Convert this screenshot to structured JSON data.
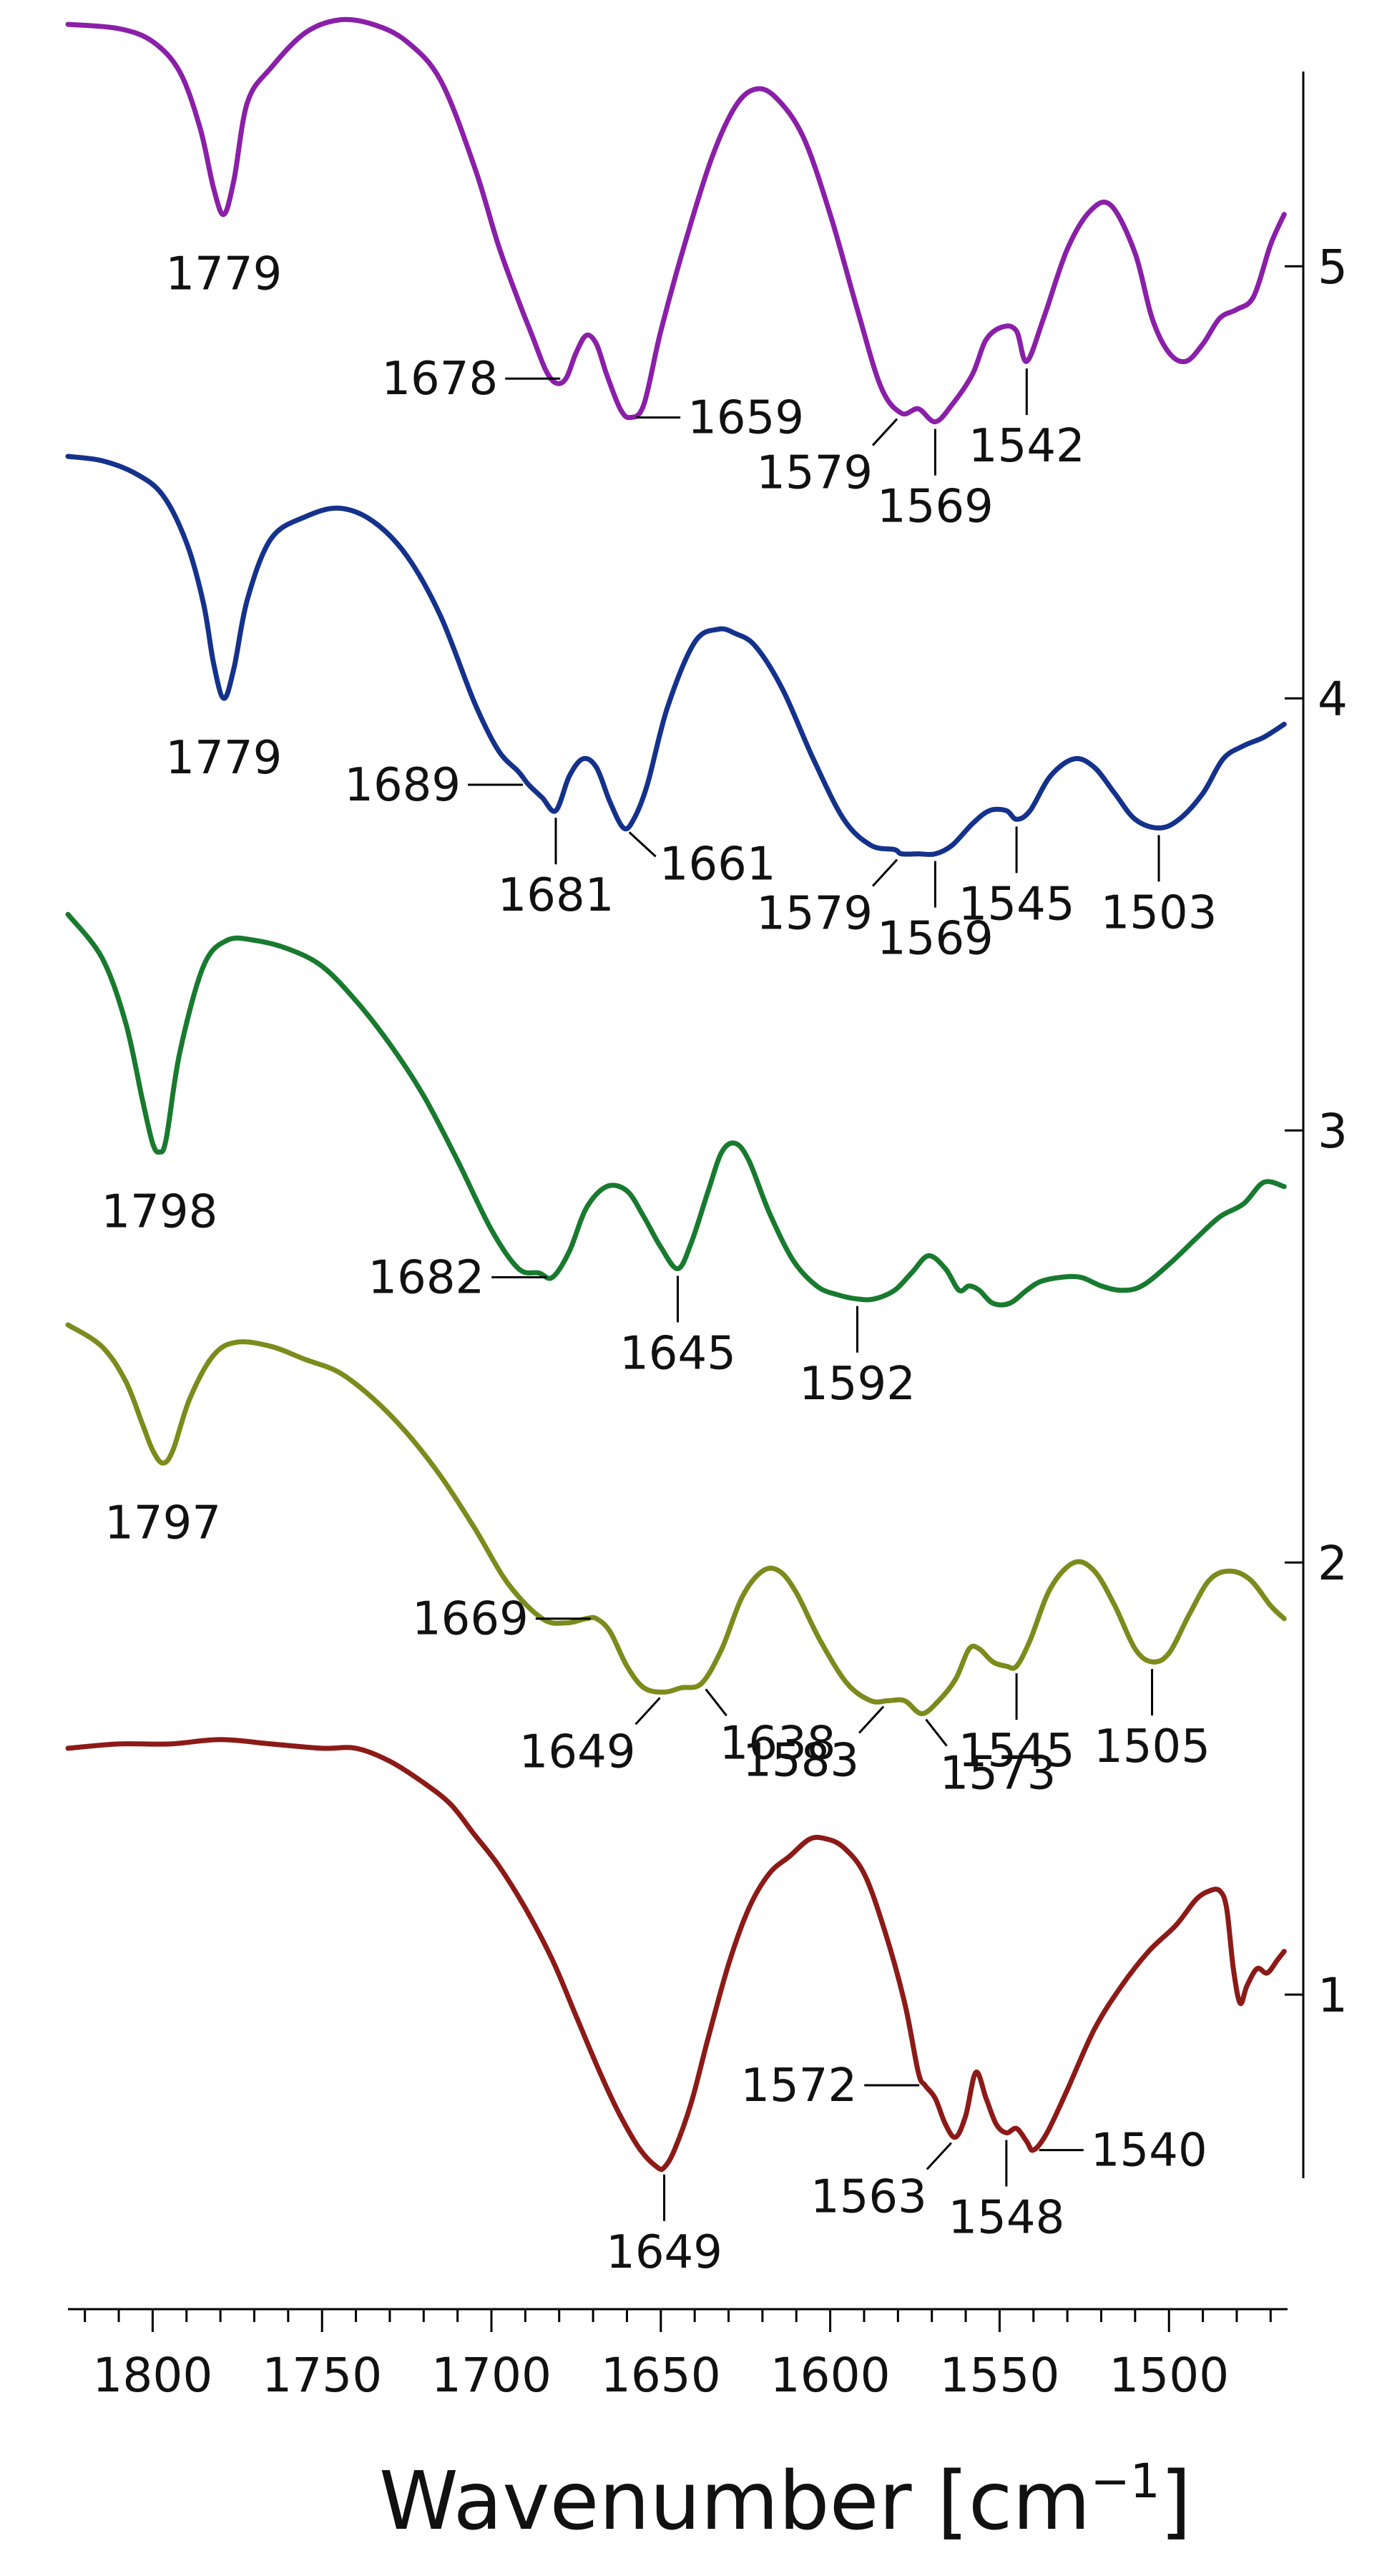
{
  "chart_data": {
    "type": "line",
    "title": "",
    "xlabel": "Wavenumber [cm",
    "xlabel_superscript": "−1",
    "xlabel_close": "]",
    "ylabel": "",
    "x_reversed": true,
    "xlim": [
      1825,
      1465
    ],
    "ylim": [
      0.55,
      5.55
    ],
    "x_ticks": [
      {
        "value": 1800,
        "label": "1800"
      },
      {
        "value": 1750,
        "label": "1750"
      },
      {
        "value": 1700,
        "label": "1700"
      },
      {
        "value": 1650,
        "label": "1650"
      },
      {
        "value": 1600,
        "label": "1600"
      },
      {
        "value": 1550,
        "label": "1550"
      },
      {
        "value": 1500,
        "label": "1500"
      }
    ],
    "y_ticks": [
      {
        "value": 1,
        "label": "1"
      },
      {
        "value": 2,
        "label": "2"
      },
      {
        "value": 3,
        "label": "3"
      },
      {
        "value": 4,
        "label": "4"
      },
      {
        "value": 5,
        "label": "5"
      }
    ],
    "grid": false,
    "legend": "none",
    "series": [
      {
        "id": "5",
        "color": "#8a1fa8",
        "x": [
          1825,
          1810,
          1800,
          1792,
          1786,
          1782,
          1779,
          1776,
          1772,
          1765,
          1755,
          1745,
          1735,
          1725,
          1715,
          1705,
          1698,
          1692,
          1688,
          1684,
          1681,
          1678,
          1675,
          1672,
          1669,
          1666,
          1662,
          1659,
          1655,
          1650,
          1643,
          1635,
          1628,
          1622,
          1616,
          1608,
          1600,
          1592,
          1585,
          1579,
          1574,
          1569,
          1564,
          1558,
          1554,
          1549,
          1545,
          1542,
          1537,
          1530,
          1523,
          1517,
          1510,
          1505,
          1500,
          1495,
          1490,
          1485,
          1480,
          1475,
          1470,
          1466
        ],
        "y": [
          5.56,
          5.55,
          5.52,
          5.45,
          5.32,
          5.18,
          5.12,
          5.2,
          5.38,
          5.46,
          5.54,
          5.57,
          5.56,
          5.52,
          5.43,
          5.23,
          5.05,
          4.92,
          4.84,
          4.76,
          4.73,
          4.74,
          4.8,
          4.84,
          4.82,
          4.75,
          4.67,
          4.65,
          4.68,
          4.85,
          5.05,
          5.25,
          5.37,
          5.41,
          5.39,
          5.3,
          5.12,
          4.9,
          4.72,
          4.66,
          4.67,
          4.64,
          4.68,
          4.75,
          4.83,
          4.86,
          4.85,
          4.78,
          4.88,
          5.04,
          5.13,
          5.14,
          5.03,
          4.88,
          4.8,
          4.78,
          4.82,
          4.88,
          4.9,
          4.93,
          5.05,
          5.12
        ]
      },
      {
        "id": "4",
        "color": "#14318c",
        "x": [
          1825,
          1815,
          1805,
          1797,
          1790,
          1785,
          1782,
          1779,
          1776,
          1772,
          1765,
          1755,
          1745,
          1735,
          1725,
          1715,
          1705,
          1698,
          1692,
          1689,
          1685,
          1681,
          1677,
          1673,
          1669,
          1665,
          1661,
          1658,
          1654,
          1648,
          1640,
          1633,
          1628,
          1622,
          1614,
          1605,
          1596,
          1588,
          1581,
          1579,
          1574,
          1569,
          1564,
          1558,
          1553,
          1548,
          1545,
          1541,
          1535,
          1528,
          1522,
          1516,
          1510,
          1503,
          1497,
          1490,
          1484,
          1478,
          1472,
          1466
        ],
        "y": [
          4.56,
          4.55,
          4.52,
          4.47,
          4.36,
          4.22,
          4.08,
          4.0,
          4.07,
          4.23,
          4.37,
          4.42,
          4.44,
          4.41,
          4.33,
          4.19,
          3.99,
          3.88,
          3.83,
          3.8,
          3.77,
          3.74,
          3.82,
          3.86,
          3.84,
          3.76,
          3.7,
          3.72,
          3.8,
          3.98,
          4.13,
          4.16,
          4.15,
          4.12,
          4.02,
          3.86,
          3.72,
          3.66,
          3.65,
          3.64,
          3.64,
          3.64,
          3.66,
          3.71,
          3.74,
          3.74,
          3.72,
          3.74,
          3.82,
          3.86,
          3.84,
          3.78,
          3.72,
          3.7,
          3.72,
          3.78,
          3.86,
          3.89,
          3.91,
          3.94
        ]
      },
      {
        "id": "3",
        "color": "#187a2e",
        "x": [
          1825,
          1815,
          1808,
          1803,
          1800,
          1798,
          1796,
          1792,
          1785,
          1778,
          1770,
          1760,
          1750,
          1740,
          1730,
          1720,
          1710,
          1700,
          1692,
          1686,
          1682,
          1677,
          1672,
          1666,
          1660,
          1655,
          1650,
          1645,
          1641,
          1636,
          1632,
          1628,
          1624,
          1618,
          1611,
          1604,
          1598,
          1592,
          1587,
          1581,
          1576,
          1571,
          1566,
          1562,
          1559,
          1556,
          1552,
          1547,
          1542,
          1538,
          1532,
          1526,
          1520,
          1514,
          1508,
          1500,
          1492,
          1485,
          1478,
          1472,
          1466
        ],
        "y": [
          3.5,
          3.4,
          3.25,
          3.07,
          2.97,
          2.95,
          2.98,
          3.18,
          3.38,
          3.44,
          3.44,
          3.42,
          3.38,
          3.3,
          3.2,
          3.08,
          2.93,
          2.77,
          2.68,
          2.67,
          2.66,
          2.72,
          2.82,
          2.87,
          2.86,
          2.8,
          2.73,
          2.68,
          2.74,
          2.86,
          2.95,
          2.97,
          2.93,
          2.81,
          2.7,
          2.64,
          2.62,
          2.61,
          2.61,
          2.63,
          2.67,
          2.71,
          2.68,
          2.63,
          2.64,
          2.63,
          2.6,
          2.6,
          2.63,
          2.65,
          2.66,
          2.66,
          2.64,
          2.63,
          2.64,
          2.69,
          2.75,
          2.8,
          2.83,
          2.88,
          2.87
        ]
      },
      {
        "id": "2",
        "color": "#7b8b1c",
        "x": [
          1825,
          1815,
          1808,
          1803,
          1800,
          1797,
          1794,
          1789,
          1782,
          1775,
          1765,
          1755,
          1745,
          1735,
          1725,
          1715,
          1705,
          1695,
          1685,
          1678,
          1672,
          1669,
          1665,
          1660,
          1655,
          1649,
          1644,
          1638,
          1632,
          1626,
          1620,
          1615,
          1610,
          1603,
          1595,
          1588,
          1583,
          1578,
          1573,
          1568,
          1563,
          1559,
          1556,
          1552,
          1548,
          1545,
          1541,
          1535,
          1528,
          1522,
          1516,
          1510,
          1505,
          1500,
          1494,
          1488,
          1482,
          1476,
          1470,
          1466
        ],
        "y": [
          2.55,
          2.5,
          2.42,
          2.32,
          2.26,
          2.23,
          2.26,
          2.38,
          2.48,
          2.51,
          2.5,
          2.47,
          2.44,
          2.38,
          2.3,
          2.2,
          2.08,
          1.95,
          1.87,
          1.86,
          1.87,
          1.87,
          1.84,
          1.76,
          1.71,
          1.7,
          1.71,
          1.72,
          1.8,
          1.92,
          1.98,
          1.98,
          1.93,
          1.82,
          1.72,
          1.68,
          1.68,
          1.68,
          1.65,
          1.68,
          1.73,
          1.8,
          1.8,
          1.77,
          1.76,
          1.76,
          1.82,
          1.94,
          2.0,
          1.98,
          1.9,
          1.8,
          1.77,
          1.79,
          1.88,
          1.96,
          1.98,
          1.96,
          1.9,
          1.87
        ]
      },
      {
        "id": "1",
        "color": "#8c1a17",
        "x": [
          1825,
          1810,
          1795,
          1780,
          1765,
          1750,
          1740,
          1730,
          1720,
          1712,
          1705,
          1698,
          1690,
          1682,
          1675,
          1668,
          1662,
          1656,
          1651,
          1649,
          1646,
          1641,
          1636,
          1630,
          1624,
          1618,
          1612,
          1606,
          1601,
          1596,
          1590,
          1584,
          1578,
          1574,
          1572,
          1569,
          1566,
          1563,
          1560,
          1557,
          1554,
          1551,
          1548,
          1545,
          1542,
          1540,
          1536,
          1530,
          1522,
          1514,
          1506,
          1498,
          1492,
          1488,
          1485,
          1483,
          1481,
          1479,
          1477,
          1474,
          1471,
          1468,
          1466
        ],
        "y": [
          1.57,
          1.58,
          1.58,
          1.59,
          1.58,
          1.57,
          1.57,
          1.54,
          1.49,
          1.44,
          1.37,
          1.3,
          1.2,
          1.08,
          0.95,
          0.82,
          0.72,
          0.64,
          0.6,
          0.6,
          0.64,
          0.75,
          0.9,
          1.07,
          1.2,
          1.28,
          1.32,
          1.36,
          1.36,
          1.34,
          1.28,
          1.15,
          0.98,
          0.82,
          0.79,
          0.76,
          0.7,
          0.67,
          0.72,
          0.82,
          0.76,
          0.7,
          0.68,
          0.69,
          0.66,
          0.64,
          0.68,
          0.78,
          0.92,
          1.02,
          1.1,
          1.16,
          1.22,
          1.24,
          1.24,
          1.2,
          1.06,
          0.98,
          1.02,
          1.06,
          1.05,
          1.08,
          1.1
        ]
      }
    ],
    "peak_labels": [
      {
        "series": "5",
        "text": "1779",
        "value": 1779,
        "pos": "below",
        "stem": false
      },
      {
        "series": "5",
        "text": "1678",
        "value": 1678,
        "pos": "left",
        "stem": true
      },
      {
        "series": "5",
        "text": "1659",
        "value": 1659,
        "pos": "right",
        "stem": true
      },
      {
        "series": "5",
        "text": "1579",
        "value": 1579,
        "pos": "below-left",
        "stem": true
      },
      {
        "series": "5",
        "text": "1569",
        "value": 1569,
        "pos": "below",
        "stem": true
      },
      {
        "series": "5",
        "text": "1542",
        "value": 1542,
        "pos": "below",
        "stem": true
      },
      {
        "series": "4",
        "text": "1779",
        "value": 1779,
        "pos": "below",
        "stem": false
      },
      {
        "series": "4",
        "text": "1689",
        "value": 1689,
        "pos": "left",
        "stem": true
      },
      {
        "series": "4",
        "text": "1681",
        "value": 1681,
        "pos": "below",
        "stem": true
      },
      {
        "series": "4",
        "text": "1661",
        "value": 1661,
        "pos": "right-low",
        "stem": true
      },
      {
        "series": "4",
        "text": "1579",
        "value": 1579,
        "pos": "below-left",
        "stem": true
      },
      {
        "series": "4",
        "text": "1569",
        "value": 1569,
        "pos": "below",
        "stem": true
      },
      {
        "series": "4",
        "text": "1545",
        "value": 1545,
        "pos": "below",
        "stem": true
      },
      {
        "series": "4",
        "text": "1503",
        "value": 1503,
        "pos": "below",
        "stem": true
      },
      {
        "series": "3",
        "text": "1798",
        "value": 1798,
        "pos": "below",
        "stem": false
      },
      {
        "series": "3",
        "text": "1682",
        "value": 1682,
        "pos": "left",
        "stem": true
      },
      {
        "series": "3",
        "text": "1645",
        "value": 1645,
        "pos": "below",
        "stem": true
      },
      {
        "series": "3",
        "text": "1592",
        "value": 1592,
        "pos": "below",
        "stem": true
      },
      {
        "series": "2",
        "text": "1797",
        "value": 1797,
        "pos": "below",
        "stem": false
      },
      {
        "series": "2",
        "text": "1669",
        "value": 1669,
        "pos": "left",
        "stem": true
      },
      {
        "series": "2",
        "text": "1649",
        "value": 1649,
        "pos": "below-left",
        "stem": true
      },
      {
        "series": "2",
        "text": "1638",
        "value": 1638,
        "pos": "below-right",
        "stem": true
      },
      {
        "series": "2",
        "text": "1583",
        "value": 1583,
        "pos": "below-left",
        "stem": true
      },
      {
        "series": "2",
        "text": "1573",
        "value": 1573,
        "pos": "below-right",
        "stem": true
      },
      {
        "series": "2",
        "text": "1545",
        "value": 1545,
        "pos": "below",
        "stem": true
      },
      {
        "series": "2",
        "text": "1505",
        "value": 1505,
        "pos": "below",
        "stem": true
      },
      {
        "series": "1",
        "text": "1649",
        "value": 1649,
        "pos": "below",
        "stem": true
      },
      {
        "series": "1",
        "text": "1572",
        "value": 1572,
        "pos": "left",
        "stem": true
      },
      {
        "series": "1",
        "text": "1563",
        "value": 1563,
        "pos": "below-left",
        "stem": true
      },
      {
        "series": "1",
        "text": "1548",
        "value": 1548,
        "pos": "below",
        "stem": true
      },
      {
        "series": "1",
        "text": "1540",
        "value": 1540,
        "pos": "right",
        "stem": true
      }
    ]
  }
}
